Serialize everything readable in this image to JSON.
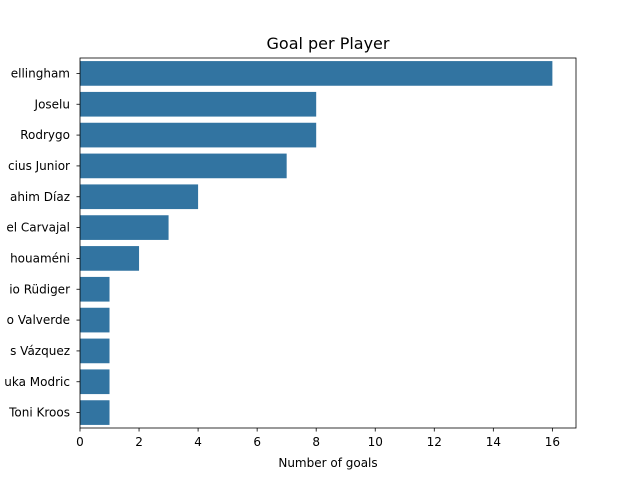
{
  "chart_data": {
    "type": "bar",
    "orientation": "horizontal",
    "title": "Goal per Player",
    "xlabel": "Number of goals",
    "ylabel": "",
    "categories": [
      "ellingham",
      "Joselu",
      "Rodrygo",
      "cius Junior",
      "ahim Díaz",
      "el Carvajal",
      "houaméni",
      "io Rüdiger",
      "o Valverde",
      "s Vázquez",
      "uka Modric",
      "Toni Kroos"
    ],
    "values": [
      16,
      8,
      8,
      7,
      4,
      3,
      2,
      1,
      1,
      1,
      1,
      1
    ],
    "xlim": [
      0,
      16.8
    ],
    "xticks": [
      0,
      2,
      4,
      6,
      8,
      10,
      12,
      14,
      16
    ],
    "bar_color": "#3274a1",
    "grid": false,
    "legend": "none"
  }
}
